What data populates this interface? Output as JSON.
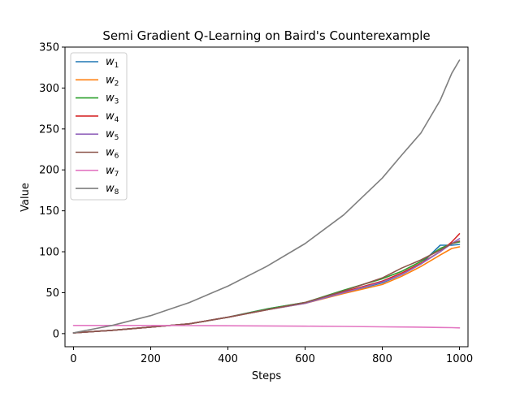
{
  "chart_data": {
    "type": "line",
    "title": "Semi Gradient Q-Learning on Baird's Counterexample",
    "xlabel": "Steps",
    "ylabel": "Value",
    "xlim": [
      -22,
      1022
    ],
    "ylim": [
      -16,
      350
    ],
    "xticks": [
      0,
      200,
      400,
      600,
      800,
      1000
    ],
    "yticks": [
      0,
      50,
      100,
      150,
      200,
      250,
      300,
      350
    ],
    "grid": false,
    "legend_position": "top-left",
    "x": [
      0,
      100,
      200,
      300,
      400,
      500,
      600,
      700,
      800,
      850,
      900,
      950,
      980,
      1000
    ],
    "series": [
      {
        "name": "w",
        "sub": "1",
        "color": "#1f77b4",
        "values": [
          1,
          4,
          8,
          12,
          20,
          30,
          38,
          50,
          62,
          72,
          85,
          108,
          108,
          109
        ]
      },
      {
        "name": "w",
        "sub": "2",
        "color": "#ff7f0e",
        "values": [
          1,
          4,
          8,
          12,
          20,
          29,
          37,
          49,
          60,
          70,
          82,
          96,
          104,
          106
        ]
      },
      {
        "name": "w",
        "sub": "3",
        "color": "#2ca02c",
        "values": [
          1,
          4,
          8,
          12,
          20,
          30,
          38,
          53,
          67,
          76,
          88,
          104,
          110,
          112
        ]
      },
      {
        "name": "w",
        "sub": "4",
        "color": "#d62728",
        "values": [
          1,
          4,
          8,
          12,
          20,
          29,
          38,
          51,
          64,
          74,
          86,
          100,
          112,
          122
        ]
      },
      {
        "name": "w",
        "sub": "5",
        "color": "#9467bd",
        "values": [
          1,
          4,
          8,
          12,
          20,
          29,
          37,
          50,
          63,
          72,
          85,
          100,
          110,
          116
        ]
      },
      {
        "name": "w",
        "sub": "6",
        "color": "#8c564b",
        "values": [
          1,
          4,
          8,
          12,
          20,
          29,
          38,
          52,
          68,
          80,
          90,
          102,
          110,
          113
        ]
      },
      {
        "name": "w",
        "sub": "7",
        "color": "#e377c2",
        "values": [
          10,
          10,
          10,
          9.8,
          9.6,
          9.4,
          9.1,
          8.8,
          8.3,
          8.1,
          7.9,
          7.5,
          7.3,
          7
        ]
      },
      {
        "name": "w",
        "sub": "8",
        "color": "#7f7f7f",
        "values": [
          1,
          10,
          22,
          38,
          58,
          82,
          110,
          145,
          190,
          218,
          245,
          285,
          318,
          334
        ]
      }
    ]
  }
}
